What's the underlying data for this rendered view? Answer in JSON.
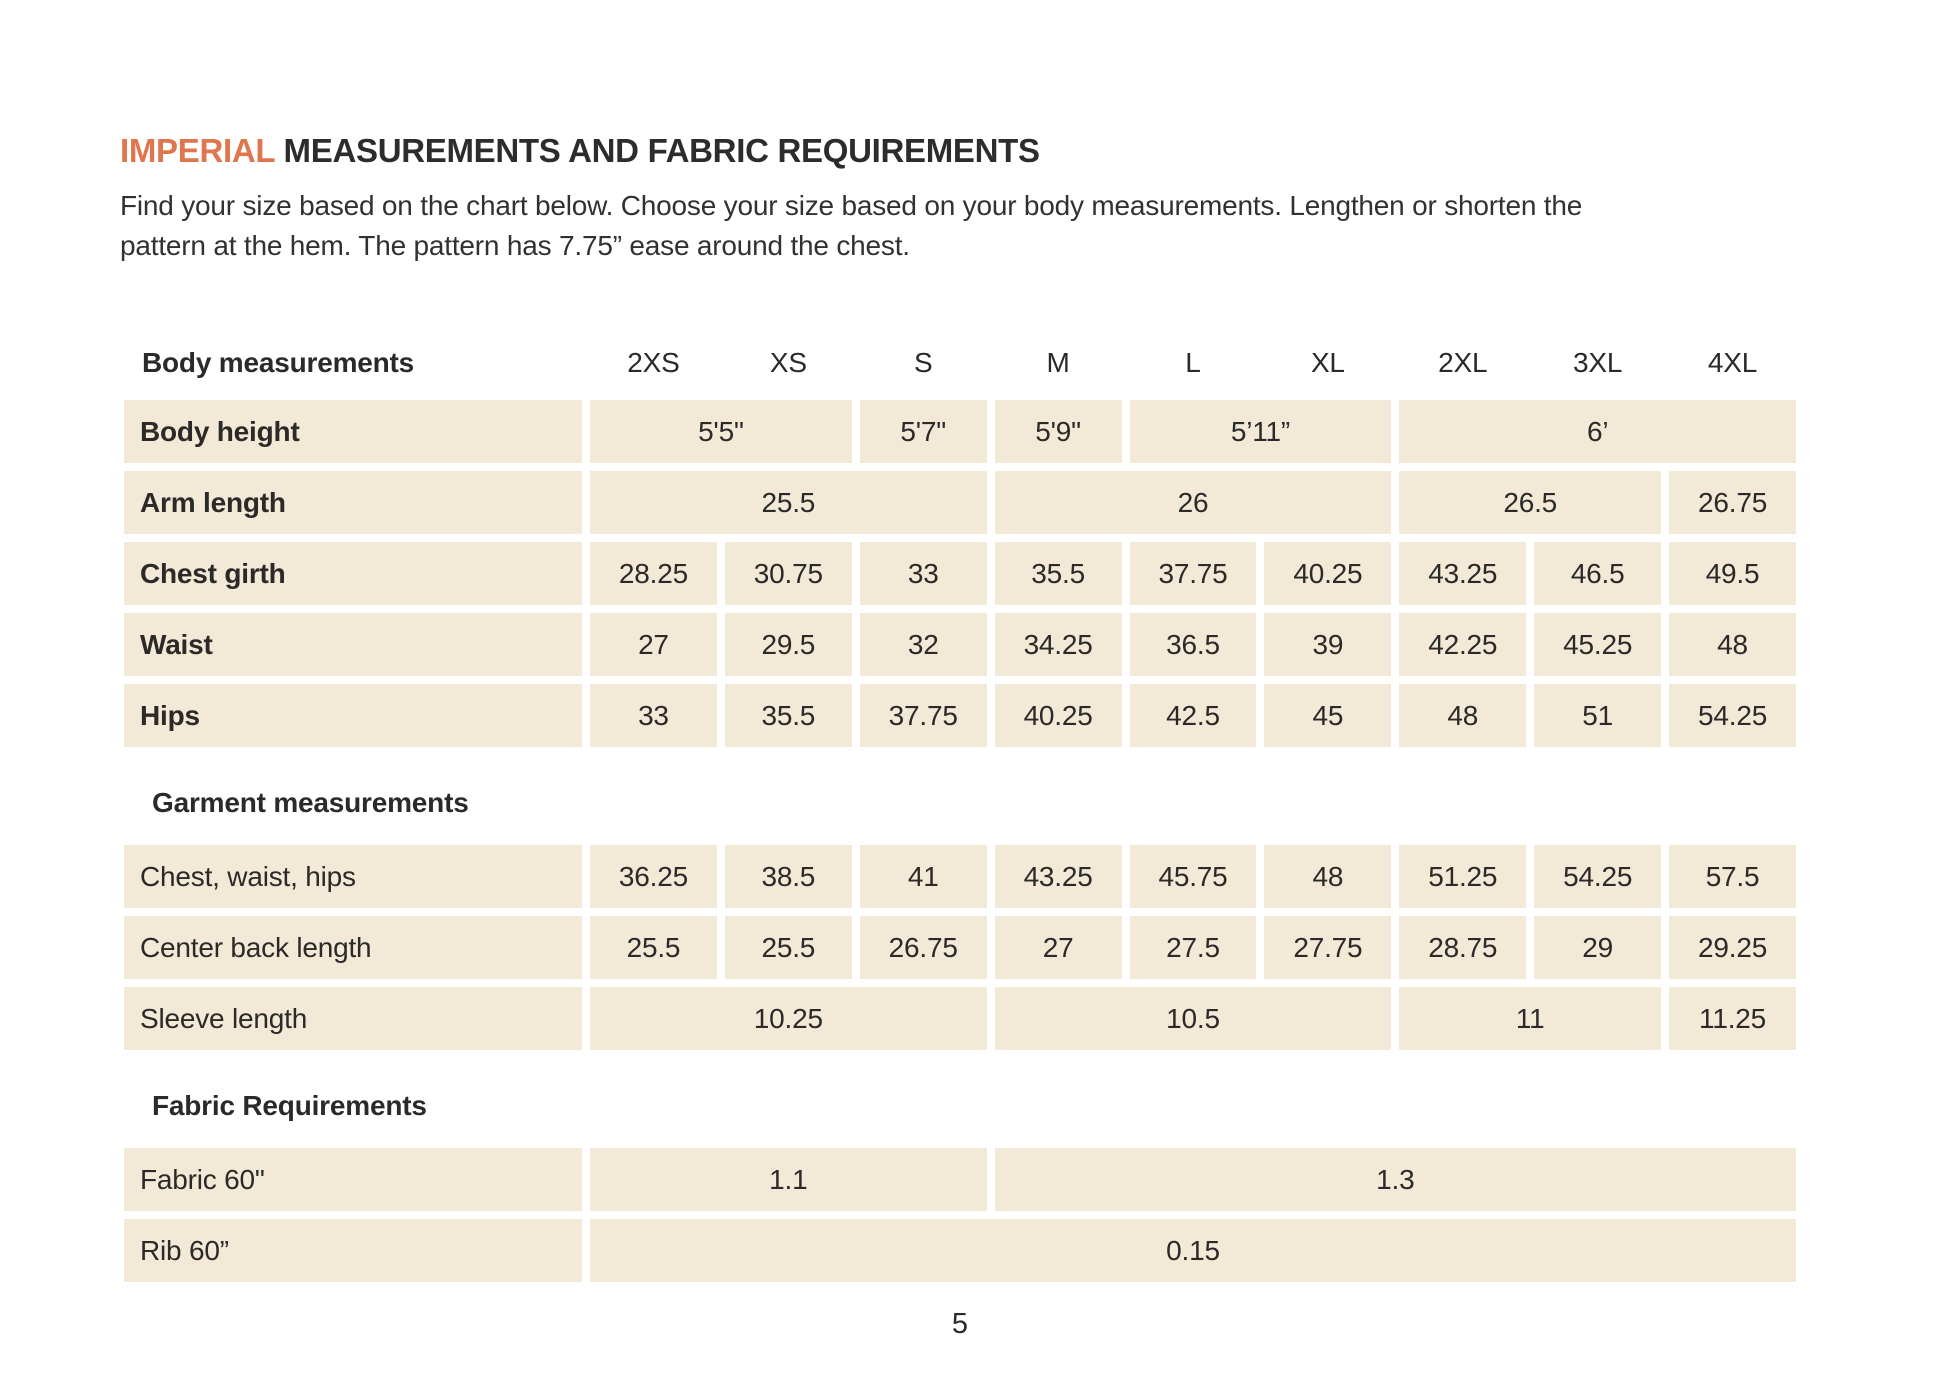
{
  "colors": {
    "accent_orange": "#e0764e",
    "cell_beige": "#f2e9d7",
    "text_dark": "#2b2a28",
    "page_background": "#ffffff"
  },
  "title": {
    "highlight": "IMPERIAL",
    "rest": " MEASUREMENTS AND FABRIC REQUIREMENTS"
  },
  "intro": {
    "line1": "Find your size based on the chart below. Choose your size based on your body measurements. Lengthen or shorten the",
    "line2": "pattern at the hem. The pattern has 7.75” ease around the chest."
  },
  "page_number": "5",
  "table": {
    "header": {
      "label": "Body measurements",
      "sizes": [
        "2XS",
        "XS",
        "S",
        "M",
        "L",
        "XL",
        "2XL",
        "3XL",
        "4XL"
      ]
    },
    "groups": [
      {
        "section_label": null,
        "bold_labels": true,
        "rows": [
          {
            "label": "Body height",
            "cells": [
              {
                "span": 2,
                "text": "5'5\""
              },
              {
                "span": 1,
                "text": "5'7\""
              },
              {
                "span": 1,
                "text": "5'9\""
              },
              {
                "span": 2,
                "text": "5’11”"
              },
              {
                "span": 3,
                "text": "6’"
              }
            ]
          },
          {
            "label": "Arm length",
            "cells": [
              {
                "span": 3,
                "text": "25.5"
              },
              {
                "span": 3,
                "text": "26"
              },
              {
                "span": 2,
                "text": "26.5"
              },
              {
                "span": 1,
                "text": "26.75"
              }
            ]
          },
          {
            "label": "Chest girth",
            "cells": [
              {
                "span": 1,
                "text": "28.25"
              },
              {
                "span": 1,
                "text": "30.75"
              },
              {
                "span": 1,
                "text": "33"
              },
              {
                "span": 1,
                "text": "35.5"
              },
              {
                "span": 1,
                "text": "37.75"
              },
              {
                "span": 1,
                "text": "40.25"
              },
              {
                "span": 1,
                "text": "43.25"
              },
              {
                "span": 1,
                "text": "46.5"
              },
              {
                "span": 1,
                "text": "49.5"
              }
            ]
          },
          {
            "label": "Waist",
            "cells": [
              {
                "span": 1,
                "text": "27"
              },
              {
                "span": 1,
                "text": "29.5"
              },
              {
                "span": 1,
                "text": "32"
              },
              {
                "span": 1,
                "text": "34.25"
              },
              {
                "span": 1,
                "text": "36.5"
              },
              {
                "span": 1,
                "text": "39"
              },
              {
                "span": 1,
                "text": "42.25"
              },
              {
                "span": 1,
                "text": "45.25"
              },
              {
                "span": 1,
                "text": "48"
              }
            ]
          },
          {
            "label": "Hips",
            "cells": [
              {
                "span": 1,
                "text": "33"
              },
              {
                "span": 1,
                "text": "35.5"
              },
              {
                "span": 1,
                "text": "37.75"
              },
              {
                "span": 1,
                "text": "40.25"
              },
              {
                "span": 1,
                "text": "42.5"
              },
              {
                "span": 1,
                "text": "45"
              },
              {
                "span": 1,
                "text": "48"
              },
              {
                "span": 1,
                "text": "51"
              },
              {
                "span": 1,
                "text": "54.25"
              }
            ]
          }
        ]
      },
      {
        "section_label": "Garment measurements",
        "bold_labels": false,
        "rows": [
          {
            "label": "Chest, waist, hips",
            "cells": [
              {
                "span": 1,
                "text": "36.25"
              },
              {
                "span": 1,
                "text": "38.5"
              },
              {
                "span": 1,
                "text": "41"
              },
              {
                "span": 1,
                "text": "43.25"
              },
              {
                "span": 1,
                "text": "45.75"
              },
              {
                "span": 1,
                "text": "48"
              },
              {
                "span": 1,
                "text": "51.25"
              },
              {
                "span": 1,
                "text": "54.25"
              },
              {
                "span": 1,
                "text": "57.5"
              }
            ]
          },
          {
            "label": "Center back length",
            "cells": [
              {
                "span": 1,
                "text": "25.5"
              },
              {
                "span": 1,
                "text": "25.5"
              },
              {
                "span": 1,
                "text": "26.75"
              },
              {
                "span": 1,
                "text": "27"
              },
              {
                "span": 1,
                "text": "27.5"
              },
              {
                "span": 1,
                "text": "27.75"
              },
              {
                "span": 1,
                "text": "28.75"
              },
              {
                "span": 1,
                "text": "29"
              },
              {
                "span": 1,
                "text": "29.25"
              }
            ]
          },
          {
            "label": "Sleeve length",
            "cells": [
              {
                "span": 3,
                "text": "10.25"
              },
              {
                "span": 3,
                "text": "10.5"
              },
              {
                "span": 2,
                "text": "11"
              },
              {
                "span": 1,
                "text": "11.25"
              }
            ]
          }
        ]
      },
      {
        "section_label": "Fabric Requirements",
        "bold_labels": false,
        "rows": [
          {
            "label": "Fabric 60\"",
            "cells": [
              {
                "span": 3,
                "text": "1.1"
              },
              {
                "span": 6,
                "text": "1.3"
              }
            ]
          },
          {
            "label": "Rib 60”",
            "cells": [
              {
                "span": 9,
                "text": "0.15"
              }
            ]
          }
        ]
      }
    ]
  }
}
